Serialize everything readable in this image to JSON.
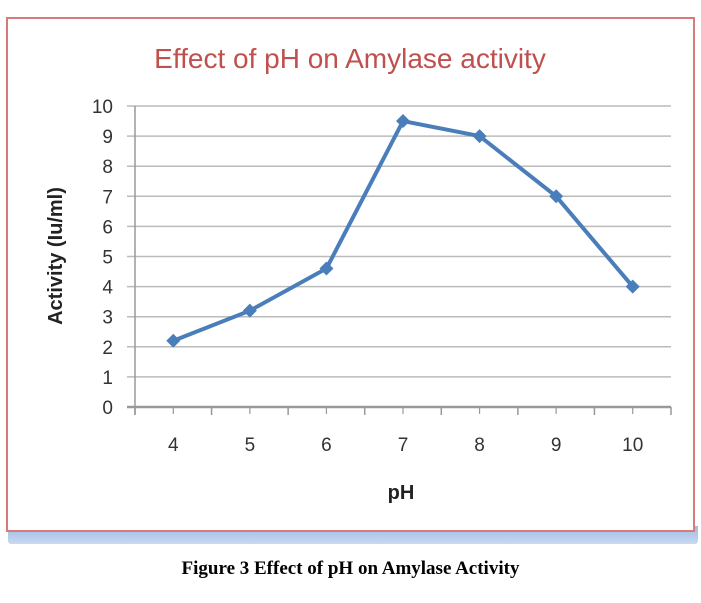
{
  "chart_data": {
    "type": "line",
    "title": "Effect of pH on Amylase activity",
    "xlabel": "pH",
    "ylabel": "Activity (Iu/ml)",
    "categories": [
      "4",
      "5",
      "6",
      "7",
      "8",
      "9",
      "10"
    ],
    "series": [
      {
        "name": "Activity",
        "values": [
          2.2,
          3.2,
          4.6,
          9.5,
          9.0,
          7.0,
          4.0
        ],
        "color": "#4a7ebb"
      }
    ],
    "ylim": [
      0,
      10
    ],
    "yticks": [
      "0",
      "1",
      "2",
      "3",
      "4",
      "5",
      "6",
      "7",
      "8",
      "9",
      "10"
    ],
    "grid": true,
    "marker": "diamond",
    "title_color": "#c0504d"
  },
  "caption": "Figure 3 Effect of pH on Amylase Activity"
}
